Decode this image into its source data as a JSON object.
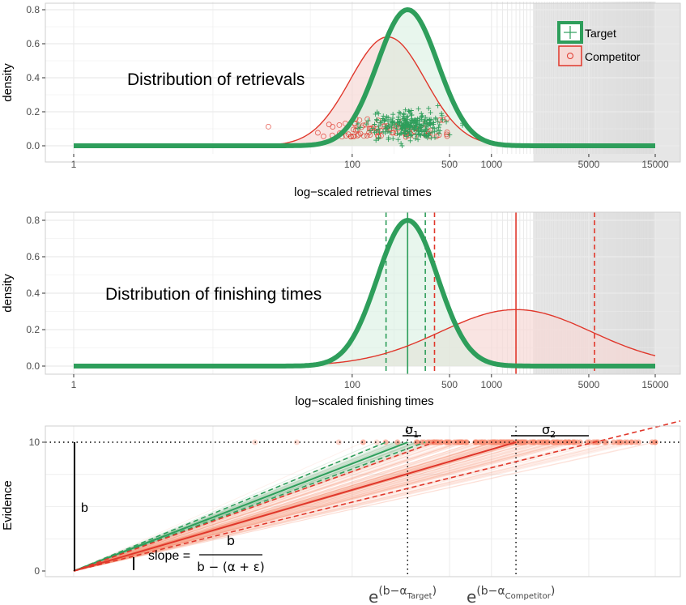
{
  "colors": {
    "target": "#2e9e5b",
    "competitor": "#e0372b",
    "target_fill": "#d6efdf",
    "competitor_fill": "#f6d9d5",
    "sim": "#f98a6f",
    "panel_bg": "#ffffff",
    "grid": "#ebebeb",
    "shade": "#e6e6e6"
  },
  "chart_data": [
    {
      "type": "area",
      "title": "Distribution of retrievals",
      "xlabel": "log−scaled retrieval times",
      "ylabel": "density",
      "x_scale": "log",
      "xlim": [
        1,
        15000
      ],
      "ylim": [
        0,
        0.8
      ],
      "x_ticks": [
        1,
        100,
        500,
        1000,
        5000,
        15000
      ],
      "x_tick_labels": [
        "1",
        "100",
        "500",
        "1000",
        "5000",
        "15000"
      ],
      "y_ticks": [
        0,
        0.2,
        0.4,
        0.6,
        0.8
      ],
      "y_tick_labels": [
        "0.0",
        "0.2",
        "0.4",
        "0.6",
        "0.8"
      ],
      "legend": {
        "position": "top-right",
        "entries": [
          "Target",
          "Competitor"
        ]
      },
      "series": [
        {
          "name": "Target",
          "kind": "lognormal-density",
          "peak_x": 250,
          "peak_density": 0.8,
          "log_sd": 0.5
        },
        {
          "name": "Competitor",
          "kind": "lognormal-density",
          "peak_x": 180,
          "peak_density": 0.64,
          "log_sd": 0.62
        }
      ],
      "scatter": [
        {
          "name": "Target",
          "marker": "plus",
          "x_range": [
            110,
            620
          ],
          "y_range": [
            0.0,
            0.24
          ],
          "count": 260
        },
        {
          "name": "Competitor",
          "marker": "circle",
          "x_range": [
            25,
            480
          ],
          "y_range": [
            0.0,
            0.19
          ],
          "count": 90
        }
      ],
      "grey_region_start": 2000
    },
    {
      "type": "area",
      "title": "Distribution of finishing times",
      "xlabel": "log−scaled finishing times",
      "ylabel": "density",
      "x_scale": "log",
      "xlim": [
        1,
        15000
      ],
      "ylim": [
        0,
        0.8
      ],
      "x_ticks": [
        1,
        100,
        500,
        1000,
        5000,
        15000
      ],
      "x_tick_labels": [
        "1",
        "100",
        "500",
        "1000",
        "5000",
        "15000"
      ],
      "y_ticks": [
        0,
        0.2,
        0.4,
        0.6,
        0.8
      ],
      "y_tick_labels": [
        "0.0",
        "0.2",
        "0.4",
        "0.6",
        "0.8"
      ],
      "series": [
        {
          "name": "Target",
          "kind": "lognormal-density",
          "peak_x": 250,
          "peak_density": 0.8,
          "log_sd": 0.5,
          "mean_line": 250,
          "sd_lines": [
            175,
            335
          ]
        },
        {
          "name": "Competitor",
          "kind": "lognormal-density",
          "peak_x": 1500,
          "peak_density": 0.31,
          "log_sd": 1.25,
          "mean_line": 1500,
          "sd_lines": [
            390,
            5500
          ]
        }
      ],
      "grey_region_start": 2000
    },
    {
      "type": "line",
      "ylabel": "Evidence",
      "ylim": [
        0,
        10
      ],
      "y_ticks": [
        0,
        10
      ],
      "y_tick_labels": [
        "0",
        "10"
      ],
      "threshold": 10,
      "target_finish": 250,
      "competitor_finish": 1500,
      "annotations": {
        "b_label": "b",
        "sigma1": "σ",
        "sigma1_sub": "1",
        "sigma2": "σ",
        "sigma2_sub": "2",
        "slope_label": "slope =",
        "slope_numerator": "b",
        "slope_denominator": "b − (α + ε)",
        "x_label_target_base": "e",
        "x_label_target_exp": "(b−α",
        "x_label_target_sub": "Target",
        "x_label_target_close": ")",
        "x_label_competitor_base": "e",
        "x_label_competitor_exp": "(b−α",
        "x_label_competitor_sub": "Competitor",
        "x_label_competitor_close": ")"
      }
    }
  ]
}
